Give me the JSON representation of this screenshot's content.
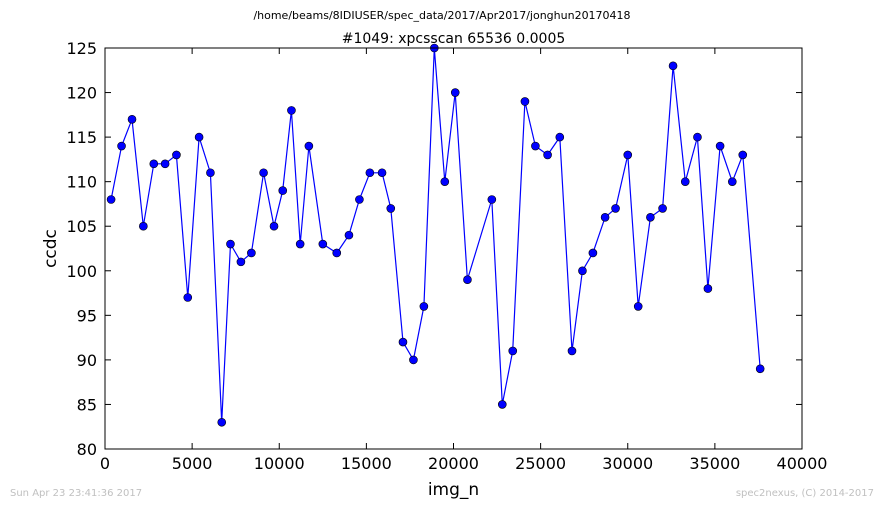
{
  "header": {
    "path": "/home/beams/8IDIUSER/spec_data/2017/Apr2017/jonghun20170418"
  },
  "footer": {
    "timestamp": "Sun Apr 23 23:41:36 2017",
    "credit": "spec2nexus, (C) 2014-2017"
  },
  "chart_data": {
    "type": "line",
    "title": "#1049: xpcsscan 65536 0.0005",
    "xlabel": "img_n",
    "ylabel": "ccdc",
    "xlim": [
      0,
      40000
    ],
    "ylim": [
      80,
      125
    ],
    "xticks": [
      0,
      5000,
      10000,
      15000,
      20000,
      25000,
      30000,
      35000,
      40000
    ],
    "yticks": [
      80,
      85,
      90,
      95,
      100,
      105,
      110,
      115,
      120,
      125
    ],
    "grid": false,
    "line_color": "#0000ff",
    "marker": "circle",
    "x": [
      350,
      950,
      1550,
      2200,
      2800,
      3450,
      4100,
      4750,
      5400,
      6050,
      6700,
      7200,
      7800,
      8400,
      9100,
      9700,
      10200,
      10700,
      11200,
      11700,
      12500,
      13300,
      14000,
      14600,
      15200,
      15900,
      16400,
      17100,
      17700,
      18300,
      18900,
      19500,
      20100,
      20800,
      22200,
      22800,
      23400,
      24100,
      24700,
      25400,
      26100,
      26800,
      27400,
      28000,
      28700,
      29300,
      30000,
      30600,
      31300,
      32000,
      32600,
      33300,
      34000,
      34600,
      35300,
      36000,
      36600,
      37600
    ],
    "y": [
      108,
      114,
      117,
      105,
      112,
      112,
      113,
      97,
      115,
      111,
      83,
      103,
      101,
      102,
      111,
      105,
      109,
      118,
      103,
      114,
      103,
      102,
      104,
      108,
      111,
      111,
      107,
      92,
      90,
      96,
      125,
      110,
      120,
      99,
      108,
      85,
      91,
      119,
      114,
      113,
      115,
      91,
      100,
      102,
      106,
      107,
      113,
      96,
      106,
      107,
      123,
      110,
      115,
      98,
      114,
      110,
      113,
      89
    ]
  }
}
